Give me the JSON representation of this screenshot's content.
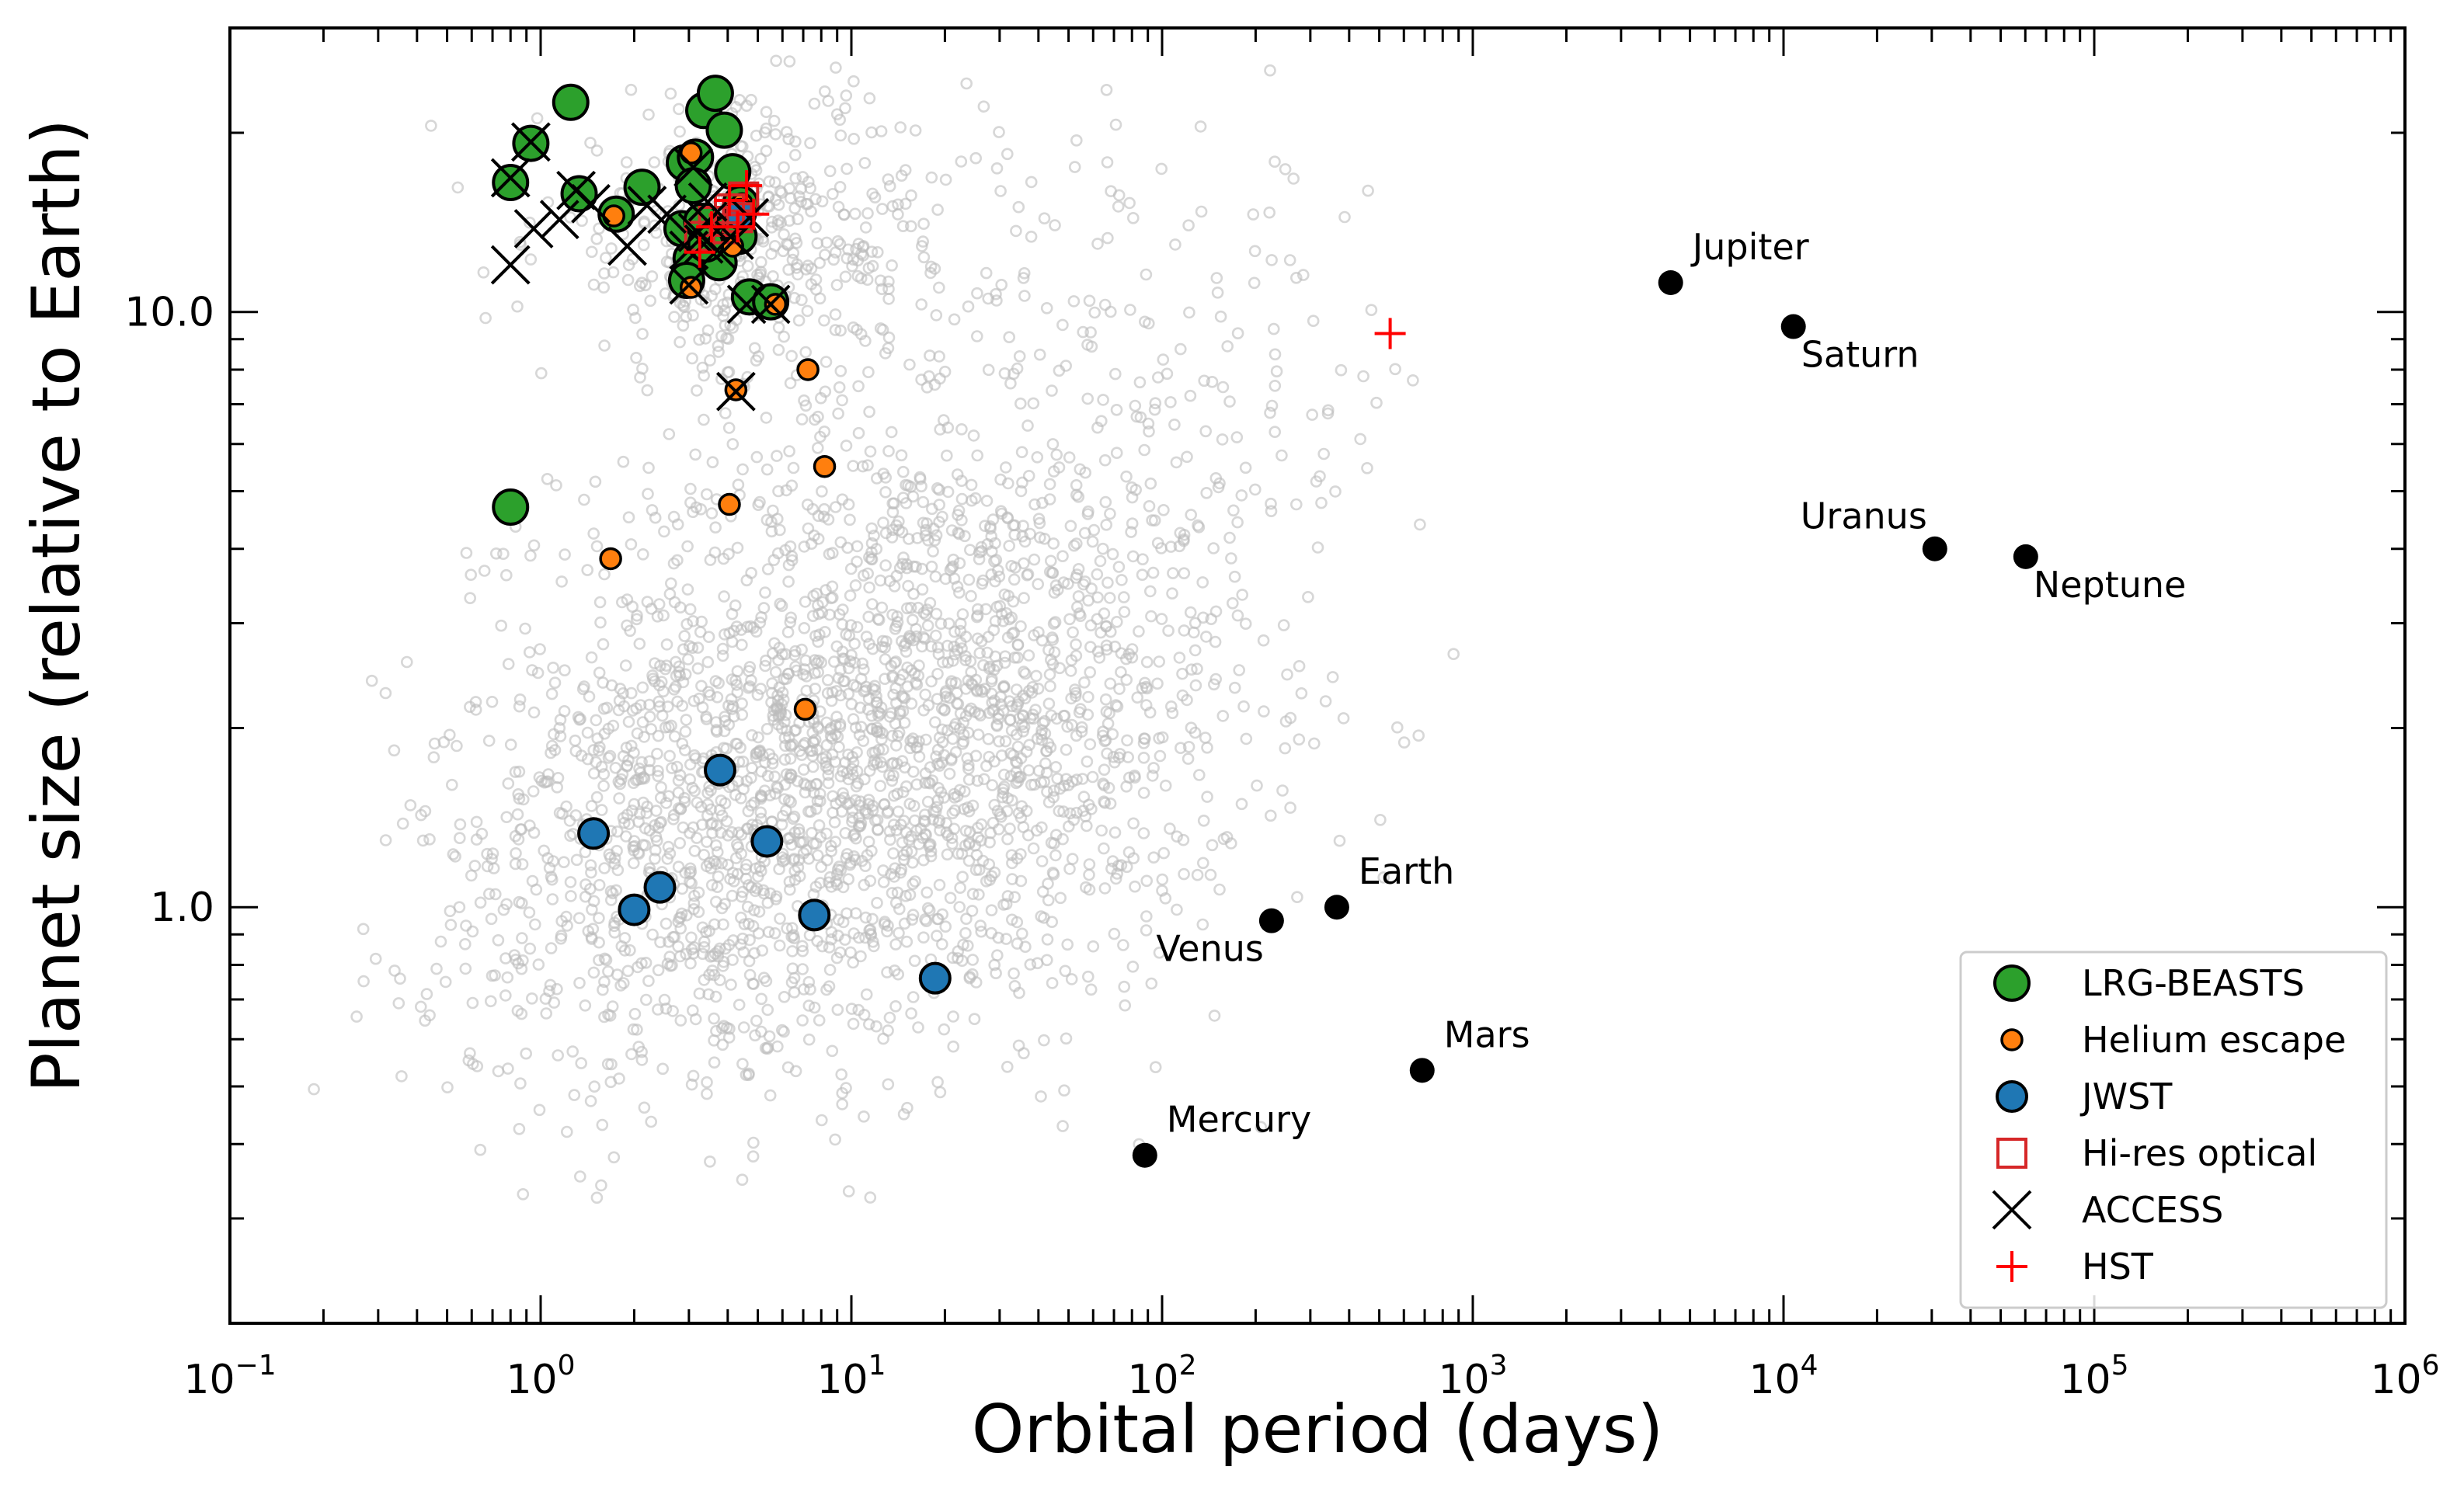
{
  "chart_data": {
    "type": "scatter",
    "title": "",
    "xlabel": "Orbital period (days)",
    "ylabel": "Planet size (relative to Earth)",
    "xscale": "log",
    "yscale": "log",
    "xlim": [
      0.1,
      1000000
    ],
    "ylim": [
      0.2,
      30
    ],
    "grid": false,
    "legend_position": "lower-right",
    "x_ticks": [
      {
        "value": 0.1,
        "base": "10",
        "exp": "−1"
      },
      {
        "value": 1,
        "base": "10",
        "exp": "0"
      },
      {
        "value": 10,
        "base": "10",
        "exp": "1"
      },
      {
        "value": 100,
        "base": "10",
        "exp": "2"
      },
      {
        "value": 1000,
        "base": "10",
        "exp": "3"
      },
      {
        "value": 10000,
        "base": "10",
        "exp": "4"
      },
      {
        "value": 100000,
        "base": "10",
        "exp": "5"
      },
      {
        "value": 1000000,
        "base": "10",
        "exp": "6"
      }
    ],
    "y_ticks": [
      {
        "value": 1,
        "label": "1.0"
      },
      {
        "value": 10,
        "label": "10.0"
      }
    ],
    "background_population": {
      "color": "#bdbdbd",
      "description_shown": "hollow grey circles",
      "clusters": [
        {
          "center": [
            15,
            2.1
          ],
          "spread": [
            0.55,
            0.24
          ],
          "count": 1800
        },
        {
          "center": [
            3,
            1.1
          ],
          "spread": [
            0.45,
            0.2
          ],
          "count": 700
        },
        {
          "center": [
            5,
            13
          ],
          "spread": [
            0.35,
            0.12
          ],
          "count": 450
        },
        {
          "center": [
            80,
            7
          ],
          "spread": [
            0.5,
            0.22
          ],
          "count": 200
        }
      ]
    },
    "solar_system": [
      {
        "name": "Mercury",
        "x": 88,
        "y": 0.383,
        "label_pos": "upper-right"
      },
      {
        "name": "Venus",
        "x": 225,
        "y": 0.949,
        "label_pos": "lower-left"
      },
      {
        "name": "Earth",
        "x": 365,
        "y": 1.0,
        "label_pos": "upper-right"
      },
      {
        "name": "Mars",
        "x": 687,
        "y": 0.532,
        "label_pos": "upper-right"
      },
      {
        "name": "Jupiter",
        "x": 4333,
        "y": 11.2,
        "label_pos": "upper-right"
      },
      {
        "name": "Saturn",
        "x": 10759,
        "y": 9.45,
        "label_pos": "lower-right"
      },
      {
        "name": "Uranus",
        "x": 30687,
        "y": 4.0,
        "label_pos": "upper-left"
      },
      {
        "name": "Neptune",
        "x": 60190,
        "y": 3.88,
        "label_pos": "lower-right"
      }
    ],
    "series": [
      {
        "name": "LRG-BEASTS",
        "color": "#2ca02c",
        "marker": "circle-large",
        "points": [
          [
            0.8,
            16.5
          ],
          [
            0.93,
            19.2
          ],
          [
            1.25,
            22.5
          ],
          [
            1.33,
            15.8
          ],
          [
            1.75,
            14.6
          ],
          [
            2.12,
            16.2
          ],
          [
            2.9,
            17.8
          ],
          [
            3.15,
            18.2
          ],
          [
            3.35,
            21.8
          ],
          [
            3.65,
            23.3
          ],
          [
            3.9,
            20.2
          ],
          [
            4.15,
            17.2
          ],
          [
            4.4,
            15.2
          ],
          [
            2.85,
            13.8
          ],
          [
            3.05,
            12.3
          ],
          [
            3.3,
            14.2
          ],
          [
            3.6,
            13.2
          ],
          [
            4.05,
            13.6
          ],
          [
            4.35,
            13.4
          ],
          [
            3.75,
            12.1
          ],
          [
            2.95,
            11.3
          ],
          [
            4.7,
            10.6
          ],
          [
            5.5,
            10.4
          ],
          [
            0.8,
            4.7
          ],
          [
            3.1,
            16.3
          ],
          [
            3.4,
            13.0
          ]
        ]
      },
      {
        "name": "Helium escape",
        "color": "#ff7f0e",
        "marker": "circle-small",
        "points": [
          [
            1.72,
            14.5
          ],
          [
            3.05,
            18.5
          ],
          [
            3.05,
            11.0
          ],
          [
            4.15,
            12.9
          ],
          [
            4.45,
            15.2
          ],
          [
            5.7,
            10.3
          ],
          [
            4.25,
            7.4
          ],
          [
            7.25,
            8.0
          ],
          [
            8.2,
            5.5
          ],
          [
            4.05,
            4.75
          ],
          [
            1.68,
            3.85
          ],
          [
            7.1,
            2.15
          ]
        ]
      },
      {
        "name": "JWST",
        "color": "#1f77b4",
        "marker": "circle-medium",
        "points": [
          [
            1.48,
            1.33
          ],
          [
            2.0,
            0.99
          ],
          [
            2.42,
            1.08
          ],
          [
            3.78,
            1.7
          ],
          [
            5.35,
            1.29
          ],
          [
            7.6,
            0.97
          ],
          [
            18.6,
            0.76
          ],
          [
            4.4,
            14.6
          ]
        ]
      },
      {
        "name": "Hi-res optical",
        "color": "#d62728",
        "marker": "square-open",
        "points": [
          [
            3.25,
            13.4
          ],
          [
            3.6,
            14.2
          ],
          [
            4.05,
            14.9
          ],
          [
            4.5,
            15.6
          ],
          [
            3.9,
            13.8
          ],
          [
            4.3,
            14.4
          ]
        ]
      },
      {
        "name": "ACCESS",
        "color": "#000000",
        "marker": "x",
        "points": [
          [
            0.8,
            12.0
          ],
          [
            0.8,
            16.8
          ],
          [
            0.93,
            19.3
          ],
          [
            0.95,
            13.8
          ],
          [
            1.15,
            14.3
          ],
          [
            1.3,
            16.0
          ],
          [
            1.45,
            15.2
          ],
          [
            1.9,
            12.9
          ],
          [
            2.2,
            15.1
          ],
          [
            2.55,
            14.6
          ],
          [
            3.0,
            11.1
          ],
          [
            3.2,
            13.6
          ],
          [
            3.45,
            14.2
          ],
          [
            3.35,
            13.0
          ],
          [
            3.7,
            12.7
          ],
          [
            4.2,
            13.2
          ],
          [
            4.6,
            10.3
          ],
          [
            4.7,
            14.4
          ],
          [
            5.5,
            10.3
          ],
          [
            4.25,
            7.35
          ],
          [
            3.1,
            17.5
          ],
          [
            3.0,
            12.7
          ],
          [
            3.45,
            15.3
          ]
        ]
      },
      {
        "name": "HST",
        "color": "#ff0000",
        "marker": "plus",
        "points": [
          [
            3.55,
            13.9
          ],
          [
            4.05,
            15.4
          ],
          [
            4.6,
            16.3
          ],
          [
            4.85,
            14.6
          ],
          [
            3.25,
            12.6
          ],
          [
            4.3,
            13.9
          ],
          [
            542,
            9.2
          ]
        ]
      }
    ]
  }
}
